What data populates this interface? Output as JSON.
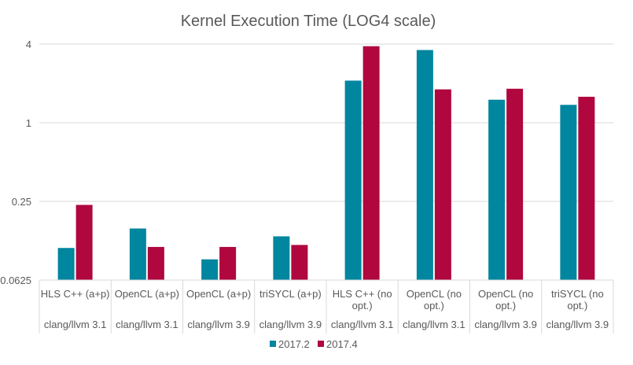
{
  "chart_data": {
    "type": "bar",
    "title": "Kernel Execution Time (LOG4 scale)",
    "yscale": "log4",
    "ylim": [
      0.0625,
      4
    ],
    "yticks": [
      "4",
      "1",
      "0.25",
      "0.0625"
    ],
    "grid": true,
    "legend_position": "bottom",
    "categories": [
      {
        "label": [
          "HLS C++ (a+p)"
        ],
        "group": "clang/llvm 3.1"
      },
      {
        "label": [
          "OpenCL (a+p)"
        ],
        "group": "clang/llvm 3.1"
      },
      {
        "label": [
          "OpenCL (a+p)"
        ],
        "group": "clang/llvm 3.9"
      },
      {
        "label": [
          "triSYCL (a+p)"
        ],
        "group": "clang/llvm 3.9"
      },
      {
        "label": [
          "HLS C++ (no",
          "opt.)"
        ],
        "group": "clang/llvm 3.1"
      },
      {
        "label": [
          "OpenCL (no",
          "opt.)"
        ],
        "group": "clang/llvm 3.1"
      },
      {
        "label": [
          "OpenCL (no",
          "opt.)"
        ],
        "group": "clang/llvm 3.9"
      },
      {
        "label": [
          "triSYCL (no",
          "opt.)"
        ],
        "group": "clang/llvm 3.9"
      }
    ],
    "series": [
      {
        "name": "2017.2",
        "color": "#00869e",
        "values": [
          0.11,
          0.155,
          0.09,
          0.135,
          2.1,
          3.6,
          1.5,
          1.37
        ]
      },
      {
        "name": "2017.4",
        "color": "#b0073e",
        "values": [
          0.235,
          0.112,
          0.112,
          0.116,
          3.85,
          1.8,
          1.82,
          1.58
        ]
      }
    ]
  }
}
